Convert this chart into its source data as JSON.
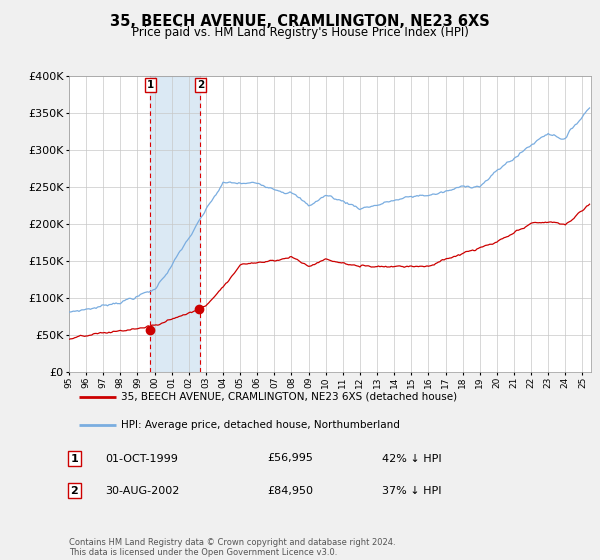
{
  "title": "35, BEECH AVENUE, CRAMLINGTON, NE23 6XS",
  "subtitle": "Price paid vs. HM Land Registry's House Price Index (HPI)",
  "legend_line1": "35, BEECH AVENUE, CRAMLINGTON, NE23 6XS (detached house)",
  "legend_line2": "HPI: Average price, detached house, Northumberland",
  "transaction1_date": "01-OCT-1999",
  "transaction1_price": "£56,995",
  "transaction1_hpi": "42% ↓ HPI",
  "transaction2_date": "30-AUG-2002",
  "transaction2_price": "£84,950",
  "transaction2_hpi": "37% ↓ HPI",
  "footer": "Contains HM Land Registry data © Crown copyright and database right 2024.\nThis data is licensed under the Open Government Licence v3.0.",
  "hpi_color": "#7aade0",
  "price_color": "#cc0000",
  "vline1_date_num": 1999.75,
  "vline2_date_num": 2002.67,
  "plot_bg_color": "#ffffff",
  "fig_bg_color": "#f0f0f0",
  "grid_color": "#c8c8c8",
  "ylim": [
    0,
    400000
  ],
  "xlim_start": 1995.0,
  "xlim_end": 2025.5,
  "t1_val": 56995,
  "t2_val": 84950,
  "t1_year": 1999.75,
  "t2_year": 2002.583
}
